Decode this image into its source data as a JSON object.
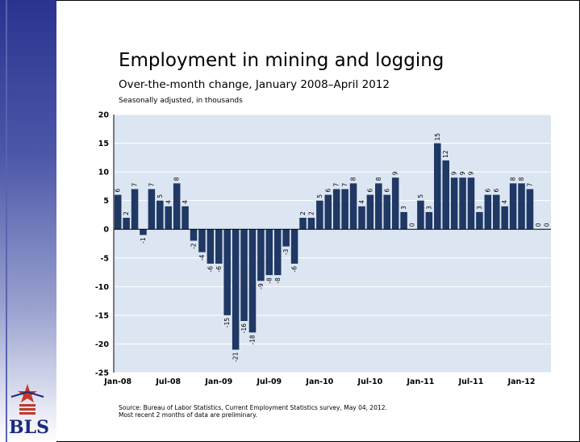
{
  "chart_data": {
    "type": "bar",
    "title": "Employment in mining and logging",
    "subtitle": "Over-the-month change, January 2008–April 2012",
    "ylabel": "Seasonally adjusted, in thousands",
    "ylim": [
      -25,
      20
    ],
    "yticks": [
      "20",
      "15",
      "10",
      "5",
      "0",
      "-5",
      "-10",
      "-15",
      "-20",
      "-25"
    ],
    "xtick_labels": [
      "Jan-08",
      "Jul-08",
      "Jan-09",
      "Jul-09",
      "Jan-10",
      "Jul-10",
      "Jan-11",
      "Jul-11",
      "Jan-12"
    ],
    "grid": true,
    "bar_color": "#1f3864",
    "plot_background": "#dce6f2",
    "series": [
      {
        "values": [
          6,
          2,
          7,
          -1,
          7,
          5,
          4,
          8,
          4,
          -2,
          -4,
          -6,
          -6,
          -15,
          -21,
          -16,
          -18,
          -9,
          -8,
          -8,
          -3,
          -6,
          2,
          2,
          5,
          6,
          7,
          7,
          8,
          4,
          6,
          8,
          6,
          9,
          3,
          0,
          5,
          3,
          15,
          12,
          9,
          9,
          9,
          3,
          6,
          6,
          4,
          8,
          8,
          7,
          0,
          0
        ],
        "labels": [
          "6",
          "2",
          "7",
          "-1",
          "7",
          "5",
          "4",
          "8",
          "4",
          "-2",
          "-4",
          "-6",
          "-6",
          "-15",
          "-21",
          "-16",
          "-18",
          "-9",
          "-8",
          "-8",
          "-3",
          "-6",
          "2",
          "2",
          "5",
          "6",
          "7",
          "7",
          "8",
          "4",
          "6",
          "8",
          "6",
          "9",
          "3",
          "0",
          "5",
          "3",
          "15",
          "12",
          "9",
          "9",
          "9",
          "3",
          "6",
          "6",
          "4",
          "8",
          "8",
          "7",
          "0",
          "0"
        ]
      }
    ]
  },
  "source": {
    "line1": "Source: Bureau of Labor Statistics, Current Employment Statistics survey, May 04, 2012.",
    "line2": "Most recent 2 months of data are preliminary."
  },
  "logo": {
    "text": "BLS",
    "star_color": "#c0392b",
    "text_color": "#1a2a80"
  }
}
